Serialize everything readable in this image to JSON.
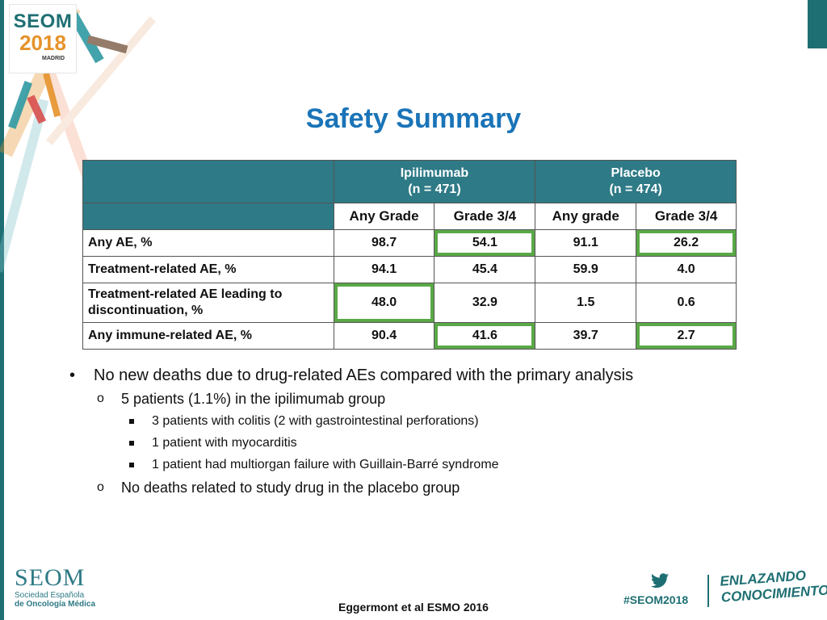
{
  "logo": {
    "name": "SEOM",
    "year": "2018",
    "city": "MADRID"
  },
  "title": "Safety Summary",
  "table": {
    "groups": [
      {
        "name": "Ipilimumab",
        "n": "(n = 471)"
      },
      {
        "name": "Placebo",
        "n": "(n = 474)"
      }
    ],
    "subheaders": [
      "Any Grade",
      "Grade 3/4",
      "Any grade",
      "Grade 3/4"
    ],
    "rows": [
      {
        "label": "Any AE, %",
        "values": [
          "98.7",
          "54.1",
          "91.1",
          "26.2"
        ]
      },
      {
        "label": "Treatment-related AE, %",
        "values": [
          "94.1",
          "45.4",
          "59.9",
          "4.0"
        ]
      },
      {
        "label": "Treatment-related AE leading to discontinuation, %",
        "values": [
          "48.0",
          "32.9",
          "1.5",
          "0.6"
        ]
      },
      {
        "label": "Any immune-related AE, %",
        "values": [
          "90.4",
          "41.6",
          "39.7",
          "2.7"
        ]
      }
    ]
  },
  "bullets": {
    "main": "No new deaths due to drug-related AEs compared with the primary analysis",
    "sub1": "5 patients (1.1%) in the ipilimumab group",
    "details": [
      "3 patients with colitis (2 with gastrointestinal perforations)",
      "1 patient with myocarditis",
      "1 patient had multiorgan failure with Guillain-Barré syndrome"
    ],
    "sub2": "No deaths related to study drug in the placebo group"
  },
  "footer": {
    "seom": "SEOM",
    "seom_line1": "Sociedad Española",
    "seom_line2": "de Oncología Médica",
    "citation": "Eggermont et al ESMO 2016",
    "hashtag": "#SEOM2018",
    "tagline1": "ENLAZANDO",
    "tagline2": "CONOCIMIENTO"
  },
  "colors": {
    "title": "#1a74b8",
    "header": "#2e7a86",
    "highlight": "#5aa847",
    "brand": "#1e6f73"
  }
}
